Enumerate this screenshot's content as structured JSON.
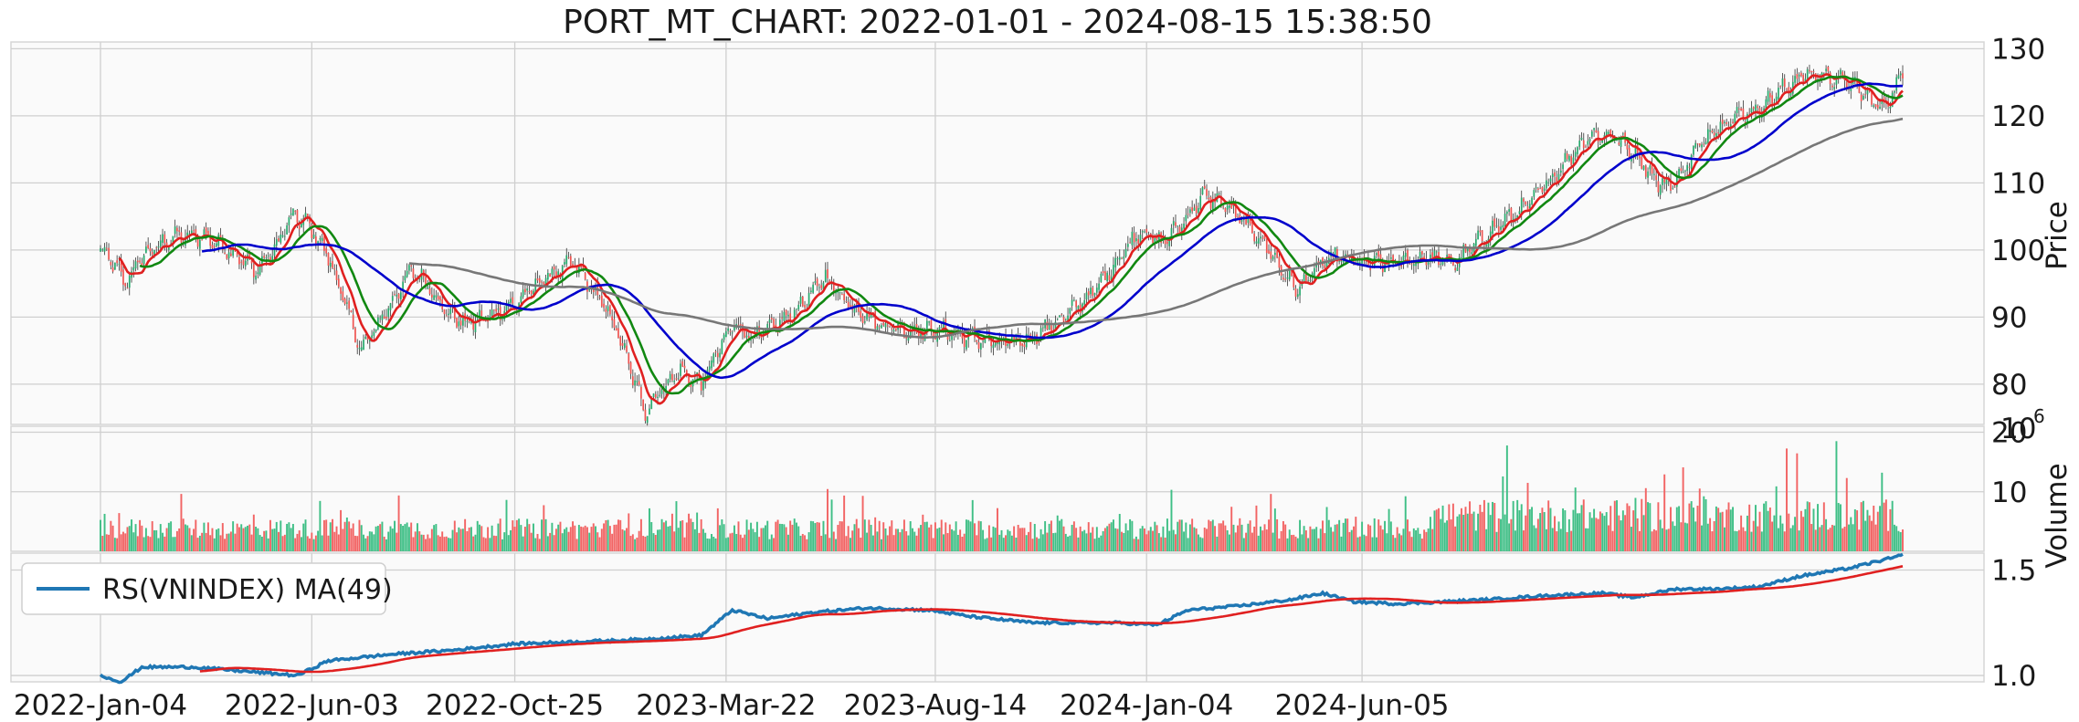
{
  "chart_data": {
    "type": "candlestick",
    "title": "PORT_MT_CHART: 2022-01-01 - 2024-08-15 15:38:50",
    "x_ticks": [
      "2022-Jan-04",
      "2022-Jun-03",
      "2022-Oct-25",
      "2023-Mar-22",
      "2023-Aug-14",
      "2024-Jan-04",
      "2024-Jun-05"
    ],
    "panels": [
      {
        "name": "price",
        "ylabel": "Price",
        "y_ticks": [
          80,
          90,
          100,
          110,
          120,
          130
        ],
        "ylim": [
          74,
          131
        ],
        "grid": true,
        "price_path": [
          [
            0,
            100
          ],
          [
            6,
            98
          ],
          [
            12,
            95
          ],
          [
            20,
            99
          ],
          [
            35,
            102
          ],
          [
            50,
            102
          ],
          [
            62,
            100
          ],
          [
            75,
            97
          ],
          [
            84,
            100
          ],
          [
            92,
            105
          ],
          [
            100,
            104
          ],
          [
            110,
            99
          ],
          [
            118,
            92
          ],
          [
            126,
            85
          ],
          [
            134,
            89
          ],
          [
            142,
            93
          ],
          [
            150,
            97
          ],
          [
            158,
            95
          ],
          [
            166,
            91
          ],
          [
            176,
            89
          ],
          [
            186,
            90
          ],
          [
            200,
            92
          ],
          [
            215,
            96
          ],
          [
            228,
            98
          ],
          [
            238,
            94
          ],
          [
            248,
            89
          ],
          [
            256,
            82
          ],
          [
            263,
            76
          ],
          [
            270,
            79
          ],
          [
            280,
            82
          ],
          [
            290,
            80
          ],
          [
            298,
            85
          ],
          [
            306,
            89
          ],
          [
            314,
            87
          ],
          [
            322,
            88
          ],
          [
            332,
            90
          ],
          [
            342,
            93
          ],
          [
            350,
            96
          ],
          [
            358,
            93
          ],
          [
            366,
            91
          ],
          [
            376,
            89
          ],
          [
            390,
            88
          ],
          [
            405,
            88
          ],
          [
            420,
            87
          ],
          [
            435,
            86
          ],
          [
            450,
            87
          ],
          [
            465,
            90
          ],
          [
            480,
            94
          ],
          [
            492,
            99
          ],
          [
            502,
            103
          ],
          [
            512,
            101
          ],
          [
            522,
            104
          ],
          [
            532,
            108
          ],
          [
            542,
            107
          ],
          [
            552,
            104
          ],
          [
            562,
            101
          ],
          [
            570,
            97
          ],
          [
            578,
            94
          ],
          [
            586,
            97
          ],
          [
            596,
            99
          ],
          [
            610,
            98
          ],
          [
            626,
            98
          ],
          [
            640,
            99
          ],
          [
            654,
            98
          ],
          [
            664,
            101
          ],
          [
            676,
            104
          ],
          [
            690,
            107
          ],
          [
            704,
            112
          ],
          [
            718,
            117
          ],
          [
            730,
            117
          ],
          [
            742,
            114
          ],
          [
            752,
            110
          ],
          [
            760,
            110
          ],
          [
            768,
            114
          ],
          [
            778,
            118
          ],
          [
            790,
            120
          ],
          [
            800,
            121
          ],
          [
            812,
            124
          ],
          [
            822,
            126
          ],
          [
            832,
            126
          ],
          [
            844,
            125
          ],
          [
            852,
            123
          ],
          [
            860,
            121
          ],
          [
            866,
            124
          ],
          [
            870,
            126
          ]
        ],
        "series": [
          {
            "color": "#e02020",
            "period": 10
          },
          {
            "color": "#118811",
            "period": 20
          },
          {
            "color": "#0000cc",
            "period": 50
          },
          {
            "color": "#777777",
            "period": 150
          }
        ]
      },
      {
        "name": "volume",
        "ylabel": "Volume",
        "exponent": "10",
        "exponent_power": "6",
        "y_ticks": [
          10,
          20
        ],
        "ylim": [
          0,
          21
        ]
      },
      {
        "name": "relative-strength",
        "y_ticks": [
          1.0,
          1.5
        ],
        "ylim": [
          0.97,
          1.58
        ],
        "legend": "RS(VNINDEX) MA(49)",
        "legend_position": "upper-left",
        "rs_path": [
          [
            0,
            1.0
          ],
          [
            10,
            0.97
          ],
          [
            20,
            1.04
          ],
          [
            45,
            1.04
          ],
          [
            70,
            1.02
          ],
          [
            95,
            1.0
          ],
          [
            110,
            1.07
          ],
          [
            140,
            1.1
          ],
          [
            170,
            1.12
          ],
          [
            200,
            1.15
          ],
          [
            230,
            1.16
          ],
          [
            260,
            1.17
          ],
          [
            290,
            1.19
          ],
          [
            305,
            1.31
          ],
          [
            322,
            1.27
          ],
          [
            345,
            1.3
          ],
          [
            370,
            1.32
          ],
          [
            400,
            1.31
          ],
          [
            420,
            1.28
          ],
          [
            450,
            1.25
          ],
          [
            490,
            1.25
          ],
          [
            510,
            1.24
          ],
          [
            525,
            1.31
          ],
          [
            550,
            1.33
          ],
          [
            575,
            1.36
          ],
          [
            590,
            1.39
          ],
          [
            605,
            1.35
          ],
          [
            625,
            1.34
          ],
          [
            650,
            1.35
          ],
          [
            670,
            1.36
          ],
          [
            700,
            1.38
          ],
          [
            725,
            1.39
          ],
          [
            740,
            1.37
          ],
          [
            760,
            1.41
          ],
          [
            780,
            1.41
          ],
          [
            800,
            1.42
          ],
          [
            820,
            1.47
          ],
          [
            845,
            1.51
          ],
          [
            870,
            1.57
          ]
        ],
        "series": [
          {
            "name": "RS(VNINDEX) MA(49)",
            "color": "#1f77b4"
          },
          {
            "color": "#e02020",
            "period": 49
          }
        ]
      }
    ],
    "colors": {
      "up": "#26a96c",
      "down": "#ef5350",
      "vol_up": "#3fbf86",
      "vol_down": "#f26464",
      "background": "#fafafa",
      "grid": "#cfcfcf"
    },
    "n_bars": 871
  }
}
